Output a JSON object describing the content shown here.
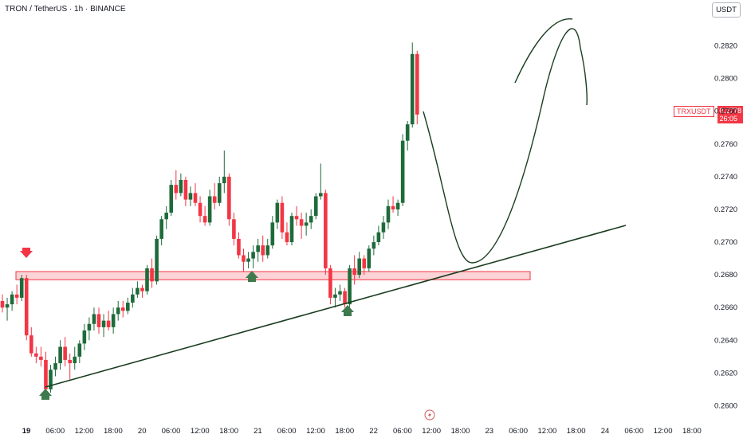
{
  "header": {
    "title": "TRON / TetherUS · 1h · BINANCE"
  },
  "currency_label": "USDT",
  "symbol_tag": {
    "symbol": "TRXUSDT",
    "price": "0.2778",
    "countdown": "26:05"
  },
  "chart_data": {
    "type": "candlestick",
    "title": "TRON / TetherUS · 1h · BINANCE",
    "ylim": [
      0.259,
      0.2848
    ],
    "y_ticks": [
      "0.2600",
      "0.2620",
      "0.2640",
      "0.2660",
      "0.2680",
      "0.2700",
      "0.2720",
      "0.2740",
      "0.2760",
      "0.2780",
      "0.2800",
      "0.2820"
    ],
    "x_ticks": [
      "19",
      "06:00",
      "12:00",
      "18:00",
      "20",
      "06:00",
      "12:00",
      "18:00",
      "21",
      "06:00",
      "12:00",
      "18:00",
      "22",
      "06:00",
      "12:00",
      "18:00",
      "23",
      "06:00",
      "12:00",
      "18:00",
      "24",
      "06:00",
      "12:00",
      "18:00"
    ],
    "x_bold_ticks": [
      "19"
    ],
    "colors": {
      "up": "#1e6b3a",
      "down": "#f23645",
      "line": "#1a3d1f",
      "zone": "#f23645",
      "arrow_down": "#f23645",
      "arrow_up": "#3f7a4d"
    },
    "candles": [
      [
        0.2664,
        0.2668,
        0.2657,
        0.266
      ],
      [
        0.266,
        0.2666,
        0.2652,
        0.2662
      ],
      [
        0.2662,
        0.267,
        0.2658,
        0.2668
      ],
      [
        0.2668,
        0.2674,
        0.2662,
        0.2666
      ],
      [
        0.2666,
        0.268,
        0.2664,
        0.2678
      ],
      [
        0.2678,
        0.268,
        0.264,
        0.2643
      ],
      [
        0.2643,
        0.2648,
        0.263,
        0.2632
      ],
      [
        0.2632,
        0.2636,
        0.2626,
        0.263
      ],
      [
        0.263,
        0.2636,
        0.2624,
        0.2628
      ],
      [
        0.2628,
        0.2633,
        0.2605,
        0.261
      ],
      [
        0.261,
        0.2625,
        0.2608,
        0.2622
      ],
      [
        0.2622,
        0.263,
        0.2618,
        0.2626
      ],
      [
        0.2626,
        0.264,
        0.2622,
        0.2636
      ],
      [
        0.2636,
        0.2642,
        0.2624,
        0.2628
      ],
      [
        0.2628,
        0.2632,
        0.2616,
        0.2626
      ],
      [
        0.2626,
        0.2636,
        0.2622,
        0.263
      ],
      [
        0.263,
        0.264,
        0.2626,
        0.2638
      ],
      [
        0.2638,
        0.265,
        0.2634,
        0.2646
      ],
      [
        0.2646,
        0.2654,
        0.264,
        0.265
      ],
      [
        0.265,
        0.266,
        0.2646,
        0.2656
      ],
      [
        0.2656,
        0.266,
        0.2644,
        0.2648
      ],
      [
        0.2648,
        0.2656,
        0.2642,
        0.2652
      ],
      [
        0.2652,
        0.2658,
        0.2646,
        0.2648
      ],
      [
        0.2648,
        0.266,
        0.2644,
        0.2656
      ],
      [
        0.2656,
        0.2664,
        0.2652,
        0.266
      ],
      [
        0.266,
        0.2664,
        0.2654,
        0.2658
      ],
      [
        0.2658,
        0.2666,
        0.2656,
        0.2663
      ],
      [
        0.2663,
        0.2672,
        0.266,
        0.2668
      ],
      [
        0.2668,
        0.2676,
        0.2666,
        0.2672
      ],
      [
        0.2672,
        0.2674,
        0.2666,
        0.267
      ],
      [
        0.267,
        0.2686,
        0.2668,
        0.2684
      ],
      [
        0.2684,
        0.269,
        0.2672,
        0.2676
      ],
      [
        0.2676,
        0.2704,
        0.2674,
        0.2702
      ],
      [
        0.2702,
        0.2716,
        0.2698,
        0.2714
      ],
      [
        0.2714,
        0.2722,
        0.2708,
        0.2718
      ],
      [
        0.2718,
        0.2738,
        0.2716,
        0.2735
      ],
      [
        0.2735,
        0.2744,
        0.2726,
        0.273
      ],
      [
        0.273,
        0.2742,
        0.2728,
        0.2738
      ],
      [
        0.2738,
        0.274,
        0.2722,
        0.2726
      ],
      [
        0.2726,
        0.2734,
        0.2722,
        0.273
      ],
      [
        0.273,
        0.2736,
        0.2722,
        0.2724
      ],
      [
        0.2724,
        0.2728,
        0.2712,
        0.2716
      ],
      [
        0.2716,
        0.2722,
        0.271,
        0.2712
      ],
      [
        0.2712,
        0.2732,
        0.271,
        0.2728
      ],
      [
        0.2728,
        0.2736,
        0.272,
        0.2724
      ],
      [
        0.2724,
        0.274,
        0.2722,
        0.2736
      ],
      [
        0.2736,
        0.2756,
        0.273,
        0.274
      ],
      [
        0.274,
        0.2742,
        0.271,
        0.2714
      ],
      [
        0.2714,
        0.2718,
        0.2698,
        0.2702
      ],
      [
        0.2702,
        0.2706,
        0.269,
        0.2692
      ],
      [
        0.2692,
        0.2696,
        0.2682,
        0.2688
      ],
      [
        0.2688,
        0.2694,
        0.2684,
        0.269
      ],
      [
        0.269,
        0.2698,
        0.2684,
        0.2694
      ],
      [
        0.2694,
        0.2702,
        0.2688,
        0.2698
      ],
      [
        0.2698,
        0.2704,
        0.2688,
        0.2692
      ],
      [
        0.2692,
        0.2702,
        0.269,
        0.2698
      ],
      [
        0.2698,
        0.2716,
        0.2696,
        0.2712
      ],
      [
        0.2712,
        0.2726,
        0.2708,
        0.2724
      ],
      [
        0.2724,
        0.2728,
        0.2702,
        0.2706
      ],
      [
        0.2706,
        0.2712,
        0.2698,
        0.27
      ],
      [
        0.27,
        0.2718,
        0.2698,
        0.2716
      ],
      [
        0.2716,
        0.2722,
        0.271,
        0.2714
      ],
      [
        0.2714,
        0.2718,
        0.2702,
        0.271
      ],
      [
        0.271,
        0.2718,
        0.2704,
        0.2712
      ],
      [
        0.2712,
        0.272,
        0.2708,
        0.2716
      ],
      [
        0.2716,
        0.273,
        0.2714,
        0.2728
      ],
      [
        0.2728,
        0.2748,
        0.2726,
        0.273
      ],
      [
        0.273,
        0.2732,
        0.268,
        0.2684
      ],
      [
        0.2684,
        0.2686,
        0.2662,
        0.2666
      ],
      [
        0.2666,
        0.2672,
        0.266,
        0.2668
      ],
      [
        0.2668,
        0.2674,
        0.2664,
        0.267
      ],
      [
        0.267,
        0.2672,
        0.266,
        0.2662
      ],
      [
        0.2662,
        0.2686,
        0.266,
        0.2684
      ],
      [
        0.2684,
        0.2692,
        0.2674,
        0.268
      ],
      [
        0.268,
        0.2694,
        0.2678,
        0.269
      ],
      [
        0.269,
        0.2692,
        0.268,
        0.2684
      ],
      [
        0.2684,
        0.2698,
        0.2682,
        0.2696
      ],
      [
        0.2696,
        0.2704,
        0.2692,
        0.27
      ],
      [
        0.27,
        0.271,
        0.2698,
        0.2706
      ],
      [
        0.2706,
        0.2716,
        0.2702,
        0.2712
      ],
      [
        0.2712,
        0.2726,
        0.2708,
        0.2722
      ],
      [
        0.2722,
        0.2728,
        0.2718,
        0.272
      ],
      [
        0.272,
        0.2726,
        0.2716,
        0.2724
      ],
      [
        0.2724,
        0.2766,
        0.2722,
        0.2762
      ],
      [
        0.2762,
        0.2774,
        0.2756,
        0.2772
      ],
      [
        0.2772,
        0.2822,
        0.277,
        0.2815
      ],
      [
        0.2815,
        0.2817,
        0.2772,
        0.2778
      ]
    ],
    "support_zone": {
      "from": 0.2677,
      "to": 0.2682
    }
  }
}
